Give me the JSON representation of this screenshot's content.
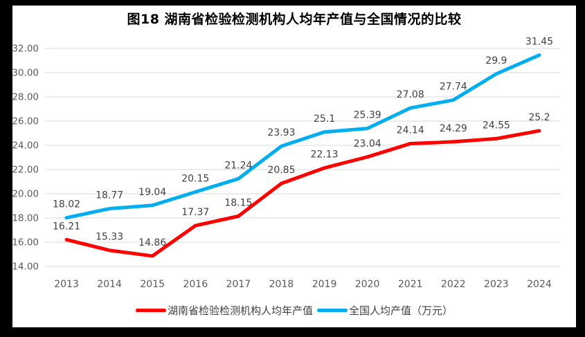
{
  "chart_data": {
    "type": "line",
    "title": "图18 湖南省检验检测机构人均年产值与全国情况的比较",
    "categories": [
      "2013",
      "2014",
      "2015",
      "2016",
      "2017",
      "2018",
      "2019",
      "2020",
      "2021",
      "2022",
      "2023",
      "2024"
    ],
    "series": [
      {
        "name": "湖南省检验检测机构人均年产值",
        "color": "#FF0000",
        "values": [
          16.21,
          15.33,
          14.86,
          17.37,
          18.15,
          20.85,
          22.13,
          23.04,
          24.14,
          24.29,
          24.55,
          25.2
        ],
        "point_labels": [
          "16.21",
          "15.33",
          "14.86",
          "17.37",
          "18.15",
          "20.85",
          "22.13",
          "23.04",
          "24.14",
          "24.29",
          "24.55",
          "25.2"
        ]
      },
      {
        "name": "全国人均产值（万元）",
        "color": "#00AEEF",
        "values": [
          18.02,
          18.77,
          19.04,
          20.15,
          21.24,
          23.93,
          25.1,
          25.39,
          27.08,
          27.74,
          29.9,
          31.45
        ],
        "point_labels": [
          "18.02",
          "18.77",
          "19.04",
          "20.15",
          "21.24",
          "23.93",
          "25.1",
          "25.39",
          "27.08",
          "27.74",
          "29.9",
          "31.45"
        ]
      }
    ],
    "xlabel": "",
    "ylabel": "",
    "ylim": [
      14,
      32
    ],
    "yticks": [
      "14.00",
      "16.00",
      "18.00",
      "20.00",
      "22.00",
      "24.00",
      "26.00",
      "28.00",
      "30.00",
      "32.00"
    ],
    "grid": true,
    "legend_position": "bottom",
    "colors": {
      "gridline": "#D9D9D9",
      "axis_tick_label": "#595959",
      "data_label": "#404040",
      "title": "#000000",
      "frame_background": "#000000",
      "panel_background": "#FFFFFF"
    }
  }
}
